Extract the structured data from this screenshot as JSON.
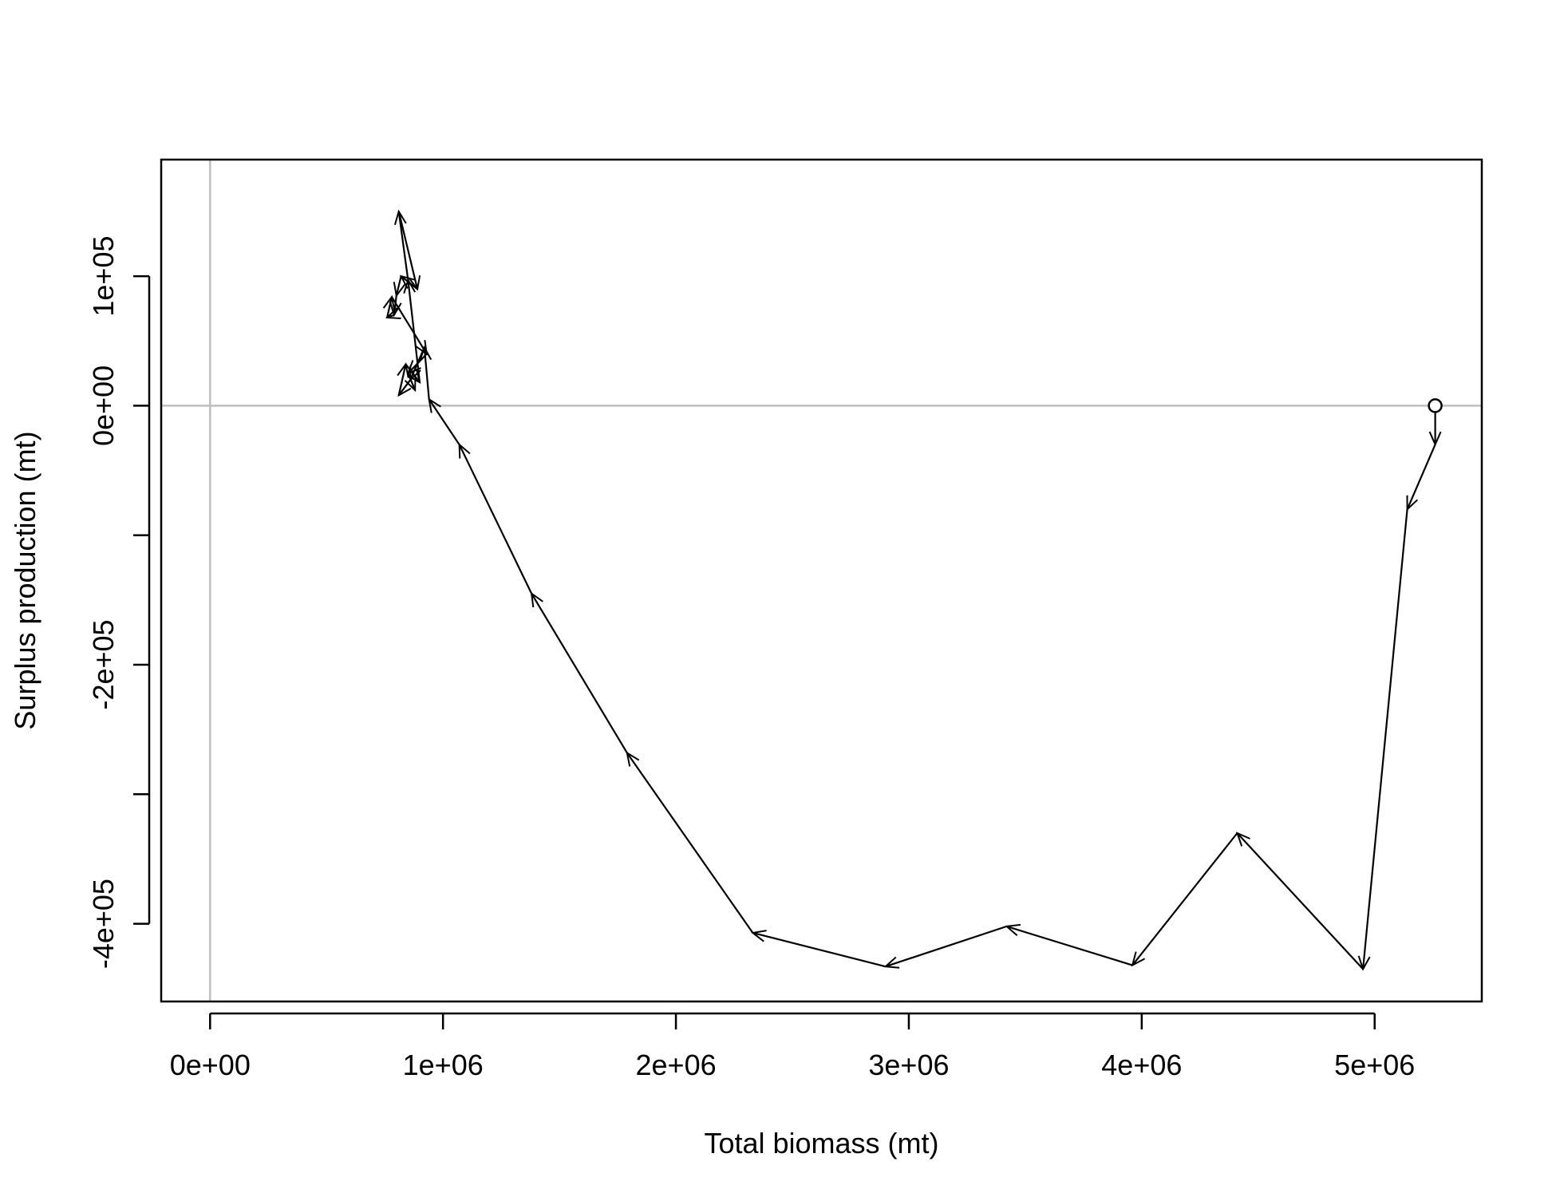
{
  "chart_data": {
    "type": "line",
    "title": "",
    "xlabel": "Total biomass (mt)",
    "ylabel": "Surplus production (mt)",
    "xlim": [
      -210000,
      5460000
    ],
    "ylim": [
      -460000,
      190000
    ],
    "x_ticks": [
      0,
      1000000,
      2000000,
      3000000,
      4000000,
      5000000
    ],
    "x_tick_labels": [
      "0e+00",
      "1e+06",
      "2e+06",
      "3e+06",
      "4e+06",
      "5e+06"
    ],
    "y_ticks": [
      -400000,
      -300000,
      -200000,
      -100000,
      0,
      100000
    ],
    "y_tick_labels": [
      "-4e+05",
      "",
      "-2e+05",
      "",
      "0e+00",
      "1e+05"
    ],
    "reference_lines": {
      "x": 0,
      "y": 0,
      "color": "#bebebe"
    },
    "start_marker": "open-circle",
    "line_color": "#000000",
    "series": [
      {
        "x": [
          5260000,
          5260000,
          5140000,
          4950000,
          4410000,
          3960000,
          3420000,
          2900000,
          2330000,
          1790000,
          1380000,
          1070000,
          940000,
          920000,
          860000,
          810000,
          840000,
          900000,
          850000,
          810000,
          890000,
          820000,
          800000,
          790000,
          760000,
          780000,
          930000,
          850000,
          880000
        ],
        "y": [
          0,
          -30000,
          -80000,
          -435000,
          -330000,
          -432000,
          -402000,
          -433000,
          -407000,
          -268000,
          -145000,
          -30000,
          5000,
          45000,
          20000,
          8000,
          32000,
          18000,
          97000,
          150000,
          90000,
          100000,
          85000,
          70000,
          68000,
          84000,
          40000,
          25000,
          12000
        ]
      }
    ]
  }
}
